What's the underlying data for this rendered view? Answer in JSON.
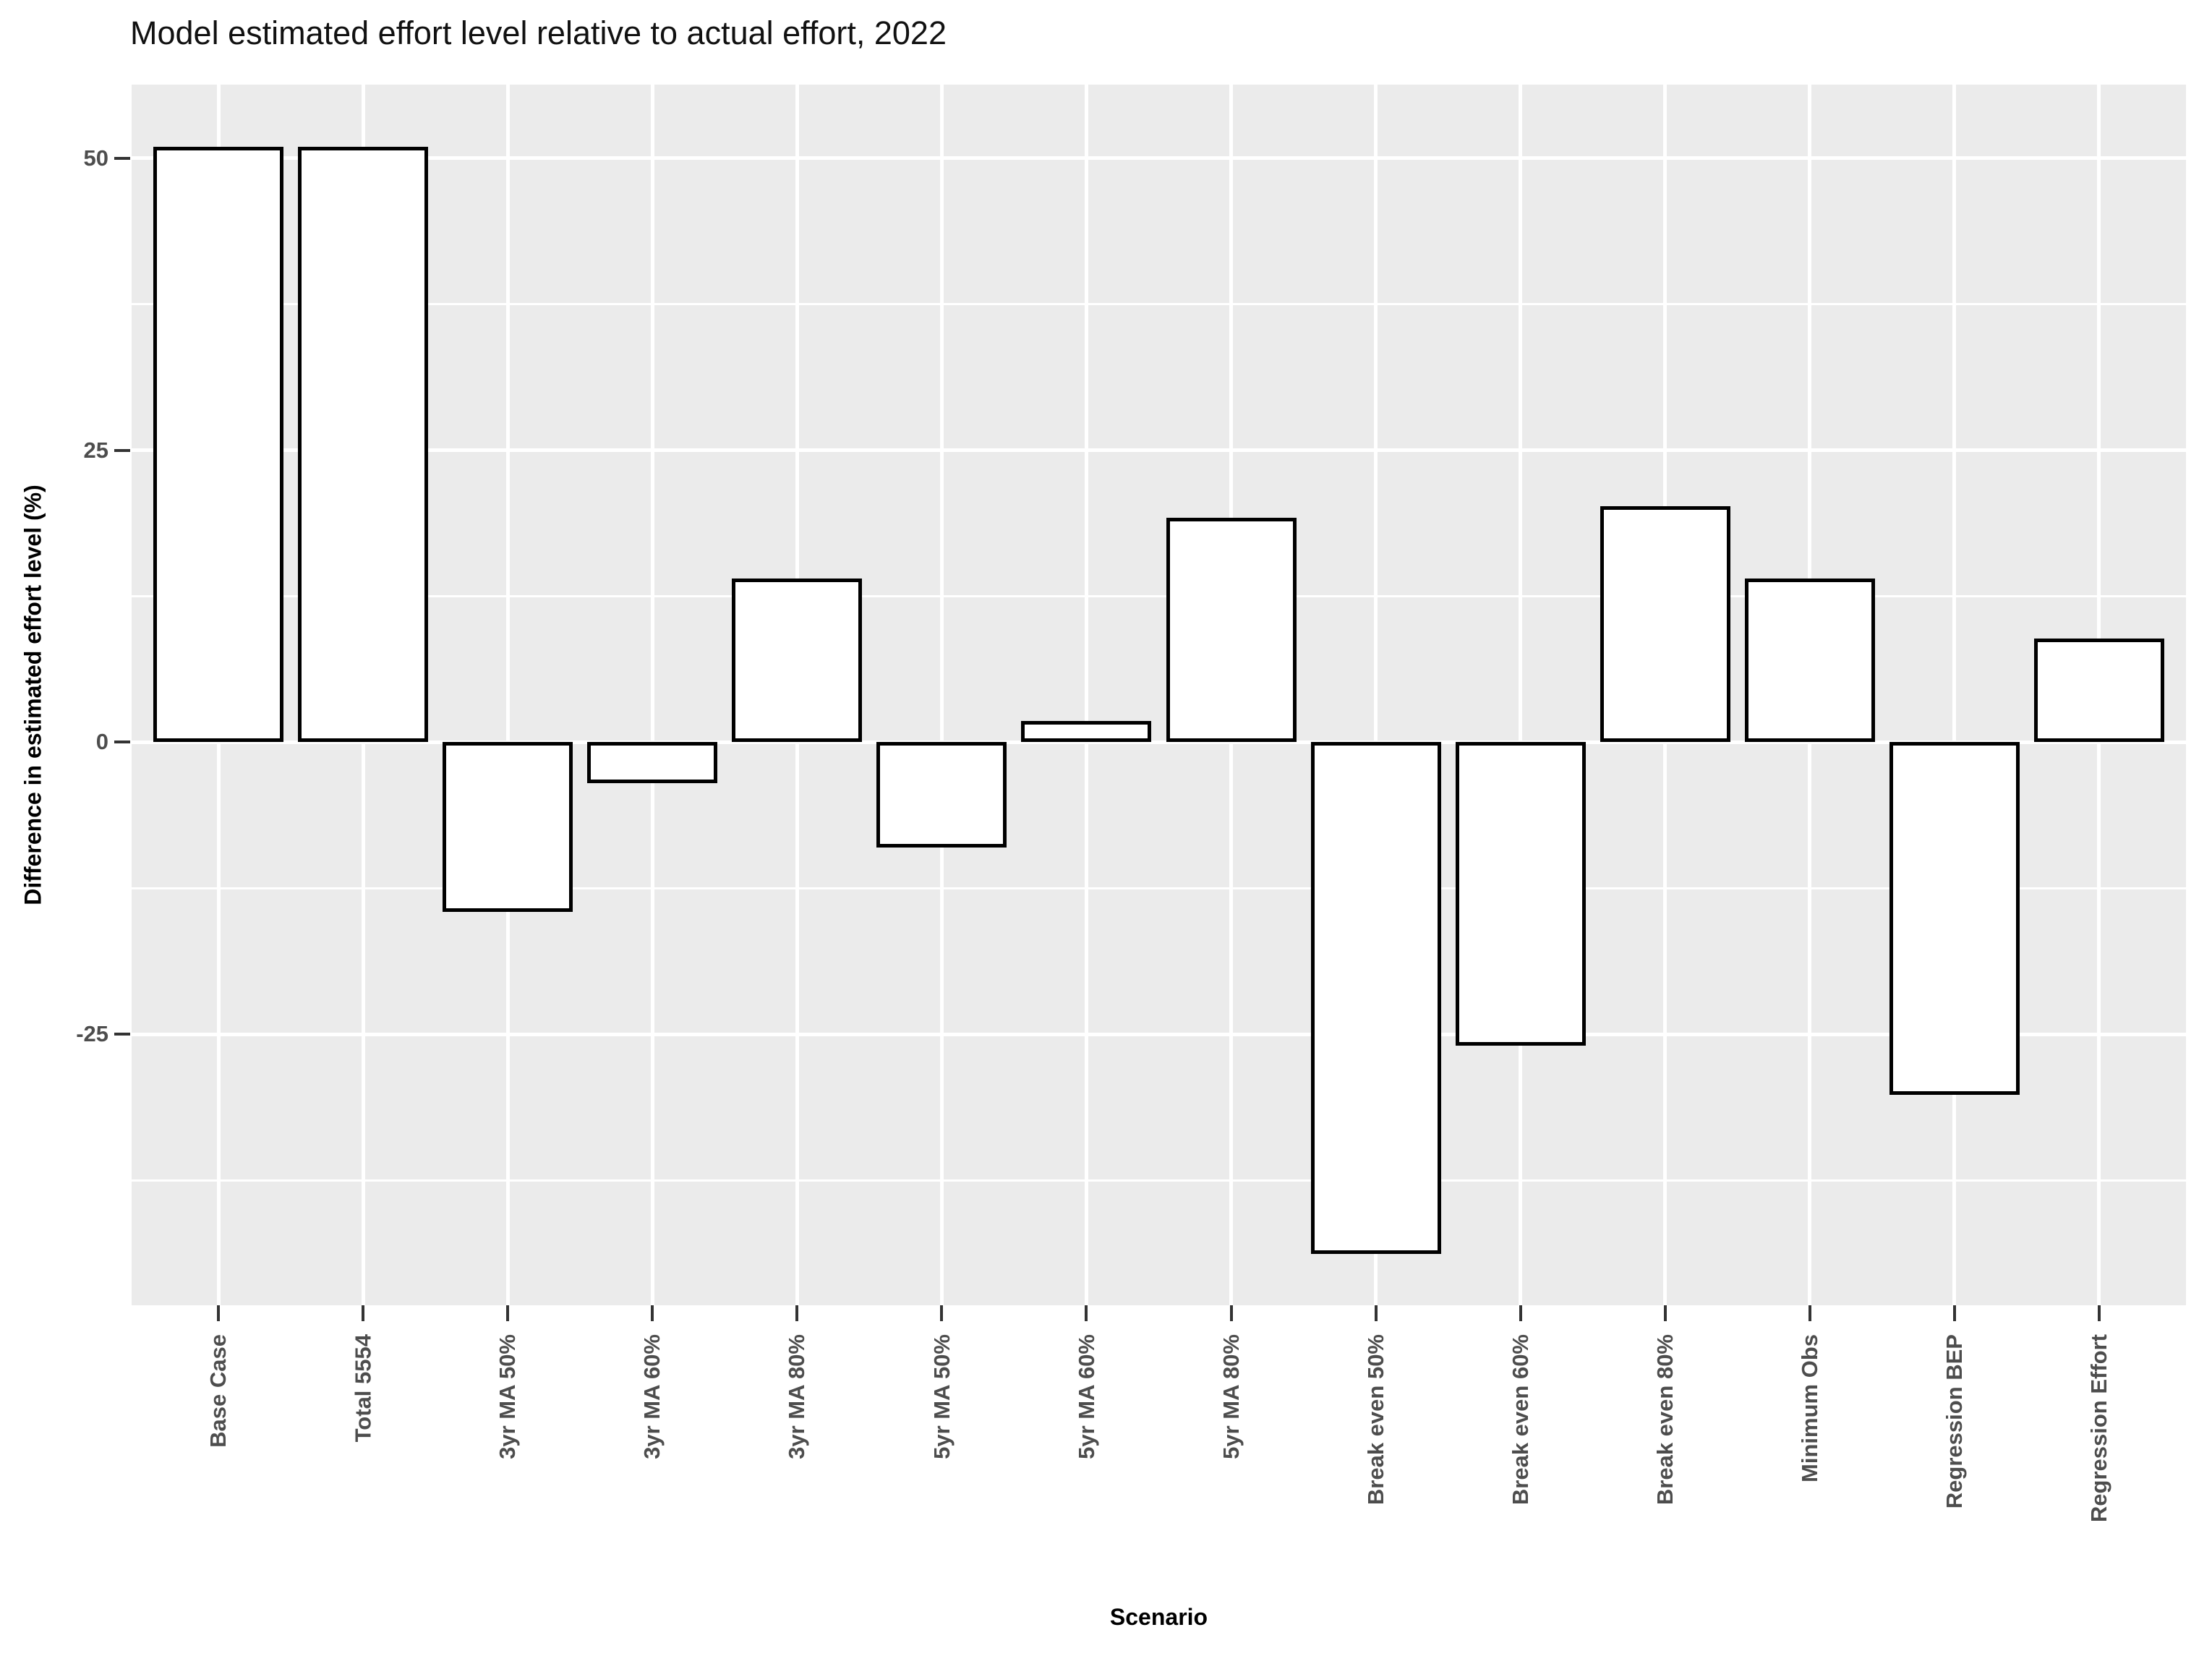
{
  "chart_data": {
    "type": "bar",
    "title": "Model estimated effort level relative to actual effort, 2022",
    "xlabel": "Scenario",
    "ylabel": "Difference in estimated effort level (%)",
    "categories": [
      "Base Case",
      "Total 5554",
      "3yr MA 50%",
      "3yr MA 60%",
      "3yr MA 80%",
      "5yr MA 50%",
      "5yr MA 60%",
      "5yr MA 80%",
      "Break even 50%",
      "Break even 60%",
      "Break even 80%",
      "Minimum Obs",
      "Regression BEP",
      "Regression Effort"
    ],
    "values": [
      51,
      51,
      -14.5,
      -3.5,
      14,
      -9,
      1.8,
      19.2,
      -43.8,
      -26,
      20.2,
      14,
      -30.2,
      8.9
    ],
    "ylim": [
      -48.2,
      56.3
    ],
    "yticks": [
      -25,
      0,
      25,
      50
    ],
    "yticks_minor": [
      -37.5,
      -12.5,
      12.5,
      37.5
    ],
    "grid": true,
    "legend": "none",
    "style": {
      "panel_bg": "#EBEBEB",
      "gridline_color": "#FFFFFF",
      "bar_fill": "#FFFFFF",
      "bar_border": "#000000",
      "axis_text_color": "#4D4D4D",
      "tick_mark_color": "#333333",
      "title_color": "#111111",
      "axis_title_color": "#000000"
    }
  }
}
